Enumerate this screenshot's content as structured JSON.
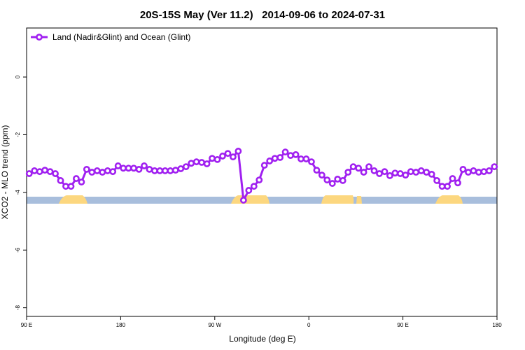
{
  "chart_data": {
    "type": "line",
    "title": "20S-15S May (Ver 11.2)   2014-09-06 to 2024-07-31",
    "xlabel": "Longitude (deg E)",
    "ylabel": "XCO2 - MLO trend (ppm)",
    "x": [
      92.5,
      97.5,
      102.5,
      107.5,
      112.5,
      117.5,
      122.5,
      127.5,
      132.5,
      137.5,
      142.5,
      147.5,
      152.5,
      157.5,
      162.5,
      167.5,
      172.5,
      177.5,
      182.5,
      187.5,
      192.5,
      197.5,
      202.5,
      207.5,
      212.5,
      217.5,
      222.5,
      227.5,
      232.5,
      237.5,
      242.5,
      247.5,
      252.5,
      257.5,
      262.5,
      267.5,
      272.5,
      277.5,
      282.5,
      287.5,
      292.5,
      297.5,
      302.5,
      307.5,
      312.5,
      317.5,
      322.5,
      327.5,
      332.5,
      337.5,
      342.5,
      347.5,
      352.5,
      357.5,
      362.5,
      367.5,
      372.5,
      377.5,
      382.5,
      387.5,
      392.5,
      397.5,
      402.5,
      407.5,
      412.5,
      417.5,
      422.5,
      427.5,
      432.5,
      437.5,
      442.5,
      447.5,
      452.5,
      457.5,
      462.5,
      467.5,
      472.5,
      477.5,
      482.5,
      487.5,
      492.5,
      497.5,
      502.5,
      507.5,
      512.5,
      517.5,
      522.5,
      527.5,
      532.5,
      537.5
    ],
    "series": [
      {
        "name": "Land (Nadir&Glint) and Ocean (Glint)",
        "color": "#a020f0",
        "values": [
          -3.35,
          -3.25,
          -3.28,
          -3.23,
          -3.28,
          -3.35,
          -3.59,
          -3.79,
          -3.79,
          -3.52,
          -3.64,
          -3.2,
          -3.3,
          -3.25,
          -3.3,
          -3.25,
          -3.28,
          -3.08,
          -3.16,
          -3.16,
          -3.16,
          -3.2,
          -3.08,
          -3.2,
          -3.25,
          -3.25,
          -3.25,
          -3.25,
          -3.23,
          -3.18,
          -3.11,
          -2.99,
          -2.94,
          -2.96,
          -3.01,
          -2.82,
          -2.86,
          -2.74,
          -2.65,
          -2.77,
          -2.57,
          -4.27,
          -3.93,
          -3.79,
          -3.57,
          -3.06,
          -2.91,
          -2.82,
          -2.79,
          -2.6,
          -2.72,
          -2.69,
          -2.84,
          -2.84,
          -2.94,
          -3.23,
          -3.4,
          -3.57,
          -3.69,
          -3.54,
          -3.59,
          -3.3,
          -3.11,
          -3.16,
          -3.3,
          -3.11,
          -3.25,
          -3.35,
          -3.28,
          -3.42,
          -3.33,
          -3.35,
          -3.4,
          -3.28,
          -3.3,
          -3.25,
          -3.3,
          -3.37,
          -3.59,
          -3.79,
          -3.79,
          -3.52,
          -3.67,
          -3.2,
          -3.3,
          -3.25,
          -3.3,
          -3.28,
          -3.25,
          -3.11
        ]
      }
    ],
    "xlim": [
      90,
      540
    ],
    "xticks": [
      {
        "value": 90,
        "label": "90 E"
      },
      180,
      {
        "value": 270,
        "label": "90 W"
      },
      {
        "value": 360,
        "label": "0"
      },
      {
        "value": 450,
        "label": "90 E"
      },
      {
        "value": 540,
        "label": "180"
      }
    ],
    "ylim": [
      -8.3,
      1.7
    ],
    "yticks": [
      0,
      -2,
      -4,
      -6,
      -8
    ],
    "legend": "upper left"
  }
}
